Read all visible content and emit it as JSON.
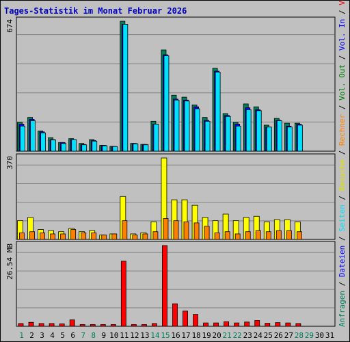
{
  "title": "Tages-Statistik im Monat Februar 2026",
  "colors": {
    "background": "#c0c0c0",
    "title": "#0000c0",
    "grid": "#808080",
    "anfragen": "#00805c",
    "dateien": "#0000ff",
    "seiten": "#00e0ff",
    "besuche": "#ffff00",
    "rechner": "#ff8000",
    "vol_out": "#008000",
    "vol_in": "#0000ff",
    "volumen": "#ff0000",
    "weekend_day": "#00805c",
    "weekday_day": "#000000"
  },
  "right_legend": [
    {
      "text": "Anfragen",
      "color": "#00805c"
    },
    {
      "text": "/",
      "color": "#000000"
    },
    {
      "text": "Dateien",
      "color": "#0000ff"
    },
    {
      "text": "/",
      "color": "#000000"
    },
    {
      "text": "Seiten",
      "color": "#00e0ff"
    },
    {
      "text": "/",
      "color": "#000000"
    },
    {
      "text": "Besuche",
      "color": "#e0e000"
    },
    {
      "text": "/",
      "color": "#000000"
    },
    {
      "text": "Rechner",
      "color": "#ff8000"
    },
    {
      "text": "/",
      "color": "#000000"
    },
    {
      "text": "Vol. Out",
      "color": "#008000"
    },
    {
      "text": "/",
      "color": "#000000"
    },
    {
      "text": "Vol. In",
      "color": "#0000ff"
    },
    {
      "text": "/",
      "color": "#000000"
    },
    {
      "text": "Volumen",
      "color": "#ff0000"
    }
  ],
  "chart_data": [
    {
      "type": "bar",
      "name": "hits-panel",
      "ymax_label": "674",
      "ylim": [
        0,
        674
      ],
      "categories": [
        "1",
        "2",
        "3",
        "4",
        "5",
        "6",
        "7",
        "8",
        "9",
        "10",
        "11",
        "12",
        "13",
        "14",
        "15",
        "16",
        "17",
        "18",
        "19",
        "20",
        "21",
        "22",
        "23",
        "24",
        "25",
        "26",
        "27",
        "28",
        "29",
        "30",
        "31"
      ],
      "series": [
        {
          "name": "Anfragen",
          "values": [
            150,
            175,
            105,
            70,
            45,
            65,
            40,
            60,
            30,
            25,
            674,
            40,
            35,
            155,
            525,
            290,
            280,
            240,
            175,
            430,
            195,
            150,
            245,
            230,
            135,
            170,
            145,
            145,
            0,
            0,
            0
          ]
        },
        {
          "name": "Dateien",
          "values": [
            140,
            165,
            100,
            60,
            45,
            60,
            35,
            55,
            30,
            25,
            658,
            40,
            35,
            140,
            500,
            270,
            265,
            230,
            160,
            415,
            185,
            140,
            225,
            215,
            125,
            160,
            130,
            140,
            0,
            0,
            0
          ]
        },
        {
          "name": "Seiten",
          "values": [
            130,
            158,
            95,
            58,
            40,
            60,
            33,
            52,
            28,
            24,
            658,
            38,
            33,
            140,
            495,
            265,
            260,
            220,
            155,
            410,
            180,
            130,
            215,
            210,
            125,
            158,
            125,
            135,
            0,
            0,
            0
          ]
        }
      ]
    },
    {
      "type": "bar",
      "name": "visits-panel",
      "ymax_label": "370",
      "ylim": [
        0,
        370
      ],
      "categories": [
        "1",
        "2",
        "3",
        "4",
        "5",
        "6",
        "7",
        "8",
        "9",
        "10",
        "11",
        "12",
        "13",
        "14",
        "15",
        "16",
        "17",
        "18",
        "19",
        "20",
        "21",
        "22",
        "23",
        "24",
        "25",
        "26",
        "27",
        "28",
        "29",
        "30",
        "31"
      ],
      "series": [
        {
          "name": "Besuche",
          "values": [
            85,
            100,
            45,
            40,
            35,
            50,
            35,
            40,
            20,
            25,
            195,
            25,
            30,
            80,
            370,
            180,
            180,
            155,
            100,
            85,
            115,
            85,
            100,
            105,
            80,
            90,
            90,
            80,
            0,
            0,
            0
          ]
        },
        {
          "name": "Rechner",
          "values": [
            30,
            35,
            30,
            25,
            25,
            45,
            30,
            30,
            20,
            25,
            85,
            20,
            25,
            35,
            95,
            85,
            80,
            75,
            60,
            30,
            35,
            25,
            35,
            40,
            35,
            40,
            40,
            35,
            0,
            0,
            0
          ]
        }
      ]
    },
    {
      "type": "bar",
      "name": "volume-panel",
      "ymax_label": "26.54 MB",
      "ylim": [
        0,
        26.54
      ],
      "categories": [
        "1",
        "2",
        "3",
        "4",
        "5",
        "6",
        "7",
        "8",
        "9",
        "10",
        "11",
        "12",
        "13",
        "14",
        "15",
        "16",
        "17",
        "18",
        "19",
        "20",
        "21",
        "22",
        "23",
        "24",
        "25",
        "26",
        "27",
        "28",
        "29",
        "30",
        "31"
      ],
      "series": [
        {
          "name": "Volumen",
          "values": [
            0.9,
            1.3,
            0.9,
            0.9,
            0.8,
            2.1,
            0.4,
            0.4,
            0.4,
            0.3,
            21.4,
            0.4,
            0.4,
            0.9,
            26.54,
            7.4,
            5.0,
            3.9,
            1.1,
            1.1,
            1.5,
            1.1,
            1.4,
            1.9,
            1.0,
            1.2,
            1.1,
            0.9,
            0,
            0,
            0
          ]
        }
      ]
    }
  ],
  "days": [
    {
      "label": "1",
      "weekend": true
    },
    {
      "label": "2",
      "weekend": false
    },
    {
      "label": "3",
      "weekend": false
    },
    {
      "label": "4",
      "weekend": false
    },
    {
      "label": "5",
      "weekend": false
    },
    {
      "label": "6",
      "weekend": false
    },
    {
      "label": "7",
      "weekend": true
    },
    {
      "label": "8",
      "weekend": true
    },
    {
      "label": "9",
      "weekend": false
    },
    {
      "label": "10",
      "weekend": false
    },
    {
      "label": "11",
      "weekend": false
    },
    {
      "label": "12",
      "weekend": false
    },
    {
      "label": "13",
      "weekend": false
    },
    {
      "label": "14",
      "weekend": true
    },
    {
      "label": "15",
      "weekend": true
    },
    {
      "label": "16",
      "weekend": false
    },
    {
      "label": "17",
      "weekend": false
    },
    {
      "label": "18",
      "weekend": false
    },
    {
      "label": "19",
      "weekend": false
    },
    {
      "label": "20",
      "weekend": false
    },
    {
      "label": "21",
      "weekend": true
    },
    {
      "label": "22",
      "weekend": true
    },
    {
      "label": "23",
      "weekend": false
    },
    {
      "label": "24",
      "weekend": false
    },
    {
      "label": "25",
      "weekend": false
    },
    {
      "label": "26",
      "weekend": false
    },
    {
      "label": "27",
      "weekend": false
    },
    {
      "label": "28",
      "weekend": true
    },
    {
      "label": "29",
      "weekend": true
    },
    {
      "label": "30",
      "weekend": false
    },
    {
      "label": "31",
      "weekend": false
    }
  ]
}
